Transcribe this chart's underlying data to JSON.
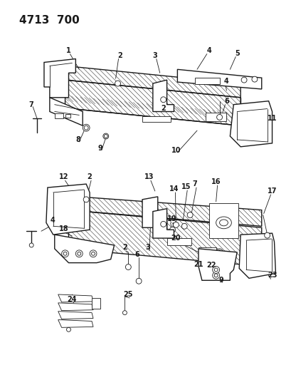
{
  "title": "4713 700",
  "bg": "#ffffff",
  "lc": "#1a1a1a",
  "fig_w": 4.1,
  "fig_h": 5.33,
  "dpi": 100
}
